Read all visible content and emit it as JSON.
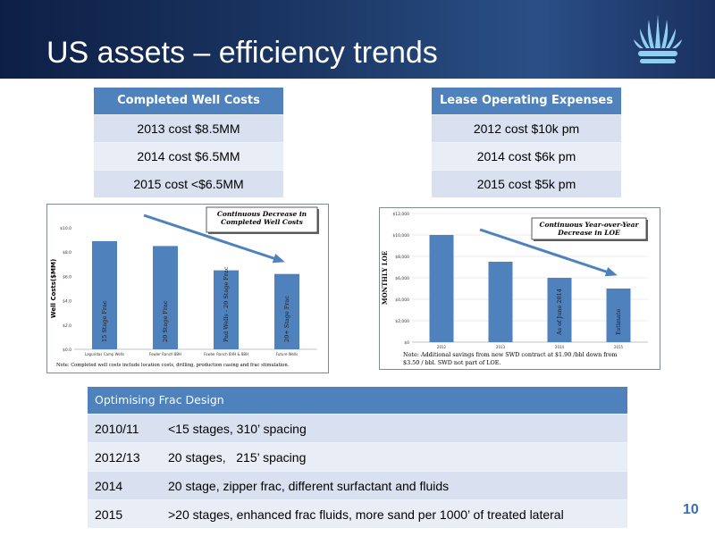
{
  "slide": {
    "title": "US assets – efficiency trends",
    "page_number": "10",
    "logo_icon": "fan-logo-icon"
  },
  "well_costs": {
    "header": "Completed Well Costs",
    "rows": [
      "2013 cost $8.5MM",
      "2014 cost $6.5MM",
      "2015 cost <$6.5MM"
    ]
  },
  "loe": {
    "header": "Lease Operating Expenses",
    "rows": [
      "2012 cost $10k pm",
      "2014 cost $6k pm",
      "2015 cost $5k pm"
    ]
  },
  "chart_data": [
    {
      "type": "bar",
      "title": "Continuous Decrease in Completed Well Costs",
      "ylabel": "Well Costs($MM)",
      "categories": [
        "Laguridas Camp Wells",
        "Fowler Ranch 8BH",
        "Fowler Ranch 8VH & 8BH",
        "Future Wells"
      ],
      "values": [
        8.9,
        8.5,
        6.5,
        6.2
      ],
      "bar_labels": [
        "15 Stage Frac",
        "20 Stage Frac",
        "Pad Wells - 20 Stage Frac",
        "20+ Stage Frac"
      ],
      "yticks": [
        "$0.0",
        "$2.0",
        "$4.0",
        "$6.0",
        "$8.0",
        "$10.0"
      ],
      "ylim": [
        0,
        10
      ],
      "note": "Note: Completed well costs include location costs, drilling, production casing and frac stimulation.",
      "bar_color": "#4f81bd",
      "arrow_color": "#4f81bd"
    },
    {
      "type": "bar",
      "title": "Continuous Year-over-Year Decrease in LOE",
      "ylabel": "MONTHLY LOE",
      "categories": [
        "2012",
        "2013",
        "2014",
        "2015"
      ],
      "values": [
        10000,
        7500,
        6000,
        5000
      ],
      "bar_labels": [
        "",
        "",
        "As of June 2014",
        "Estimate"
      ],
      "yticks": [
        "$0",
        "$2,000",
        "$4,000",
        "$6,000",
        "$8,000",
        "$10,000",
        "$12,000"
      ],
      "ylim": [
        0,
        12000
      ],
      "note": "Note: Additional savings from new SWD contract at $1.90 /bbl down from $3.50 / bbl.  SWD not part of LOE.",
      "bar_color": "#4f81bd",
      "arrow_color": "#4f81bd"
    }
  ],
  "frac": {
    "header": "Optimising Frac Design",
    "rows": [
      {
        "year": "2010/11",
        "desc": "<15 stages, 310’ spacing"
      },
      {
        "year": "2012/13",
        "desc": "20 stages,   215’ spacing"
      },
      {
        "year": "2014",
        "desc": "20 stage, zipper frac, different surfactant and fluids"
      },
      {
        "year": "2015",
        "desc": ">20 stages, enhanced frac fluids, more sand per 1000’ of treated lateral"
      }
    ]
  }
}
